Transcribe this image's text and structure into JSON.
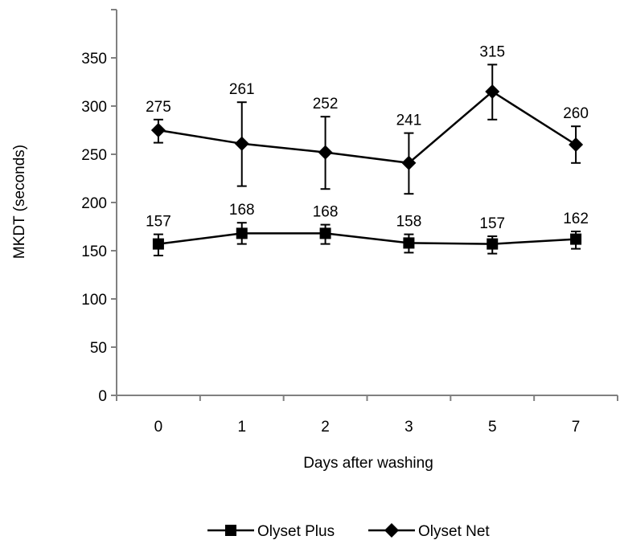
{
  "chart_data": {
    "type": "line",
    "title": "",
    "xlabel": "Days after washing",
    "ylabel": "MKDT (seconds)",
    "categories": [
      "0",
      "1",
      "2",
      "3",
      "5",
      "7"
    ],
    "ylim": [
      0,
      350
    ],
    "yticks": [
      0,
      50,
      100,
      150,
      200,
      250,
      300,
      350
    ],
    "grid": false,
    "legend_position": "bottom",
    "series": [
      {
        "name": "Olyset Plus",
        "marker": "square",
        "color": "#000000",
        "values": [
          157,
          168,
          168,
          158,
          157,
          162
        ],
        "labels": [
          "157",
          "168",
          "168",
          "158",
          "157",
          "162"
        ],
        "error_low": [
          145,
          157,
          157,
          148,
          147,
          152
        ],
        "error_high": [
          167,
          179,
          177,
          167,
          165,
          170
        ]
      },
      {
        "name": "Olyset Net",
        "marker": "diamond",
        "color": "#000000",
        "values": [
          275,
          261,
          252,
          241,
          315,
          260
        ],
        "labels": [
          "275",
          "261",
          "252",
          "241",
          "315",
          "260"
        ],
        "error_low": [
          262,
          217,
          214,
          209,
          286,
          241
        ],
        "error_high": [
          286,
          304,
          289,
          272,
          343,
          279
        ]
      }
    ]
  }
}
